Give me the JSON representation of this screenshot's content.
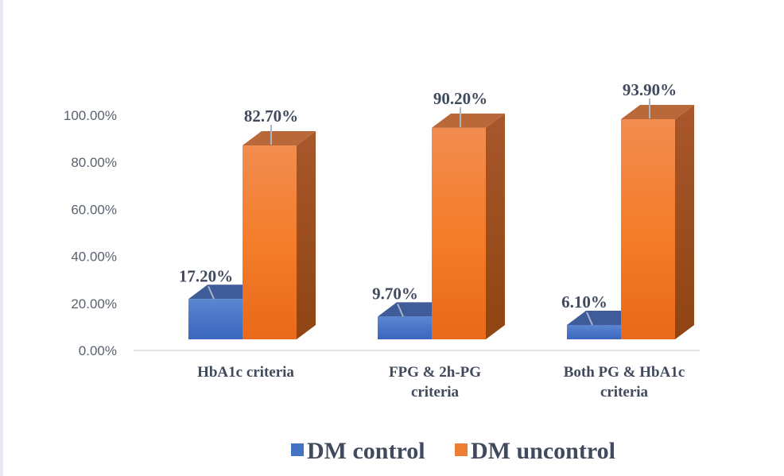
{
  "chart_data": {
    "type": "bar",
    "style": "3d-clustered-column",
    "title": "",
    "xlabel": "",
    "ylabel": "",
    "ylim": [
      0,
      100
    ],
    "yticks": [
      0,
      20,
      40,
      60,
      80,
      100
    ],
    "ytick_labels": [
      "0.00%",
      "20.00%",
      "40.00%",
      "60.00%",
      "80.00%",
      "100.00%"
    ],
    "categories": [
      [
        "HbA1c criteria"
      ],
      [
        "FPG & 2h-PG",
        "criteria"
      ],
      [
        "Both PG & HbA1c",
        "criteria"
      ]
    ],
    "series": [
      {
        "name": "DM control",
        "color": "#4472c4",
        "values": [
          17.2,
          9.7,
          6.1
        ],
        "labels": [
          "17.20%",
          "9.70%",
          "6.10%"
        ]
      },
      {
        "name": "DM uncontrol",
        "color": "#ed7d31",
        "values": [
          82.7,
          90.2,
          93.9
        ],
        "labels": [
          "82.70%",
          "90.20%",
          "93.90%"
        ]
      }
    ],
    "legend": "bottom",
    "grid": false
  }
}
